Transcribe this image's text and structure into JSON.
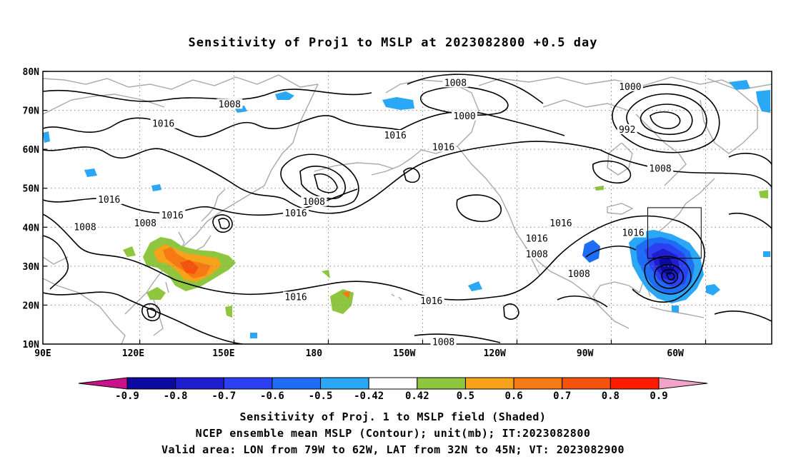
{
  "title": "Sensitivity of Proj1 to MSLP at 2023082800 +0.5 day",
  "map": {
    "lat_labels": [
      "80N",
      "70N",
      "60N",
      "50N",
      "40N",
      "30N",
      "20N",
      "10N"
    ],
    "lon_labels": [
      "90E",
      "120E",
      "150E",
      "180",
      "150W",
      "120W",
      "90W",
      "60W"
    ],
    "contour_labels": [
      {
        "text": "1008",
        "lon": 152,
        "lat": 71.5
      },
      {
        "text": "1016",
        "lon": 130,
        "lat": 66.5
      },
      {
        "text": "1016",
        "lon": 112,
        "lat": 47
      },
      {
        "text": "1008",
        "lon": 104,
        "lat": 40
      },
      {
        "text": "1016",
        "lon": 133,
        "lat": 43
      },
      {
        "text": "1008",
        "lon": 124,
        "lat": 41
      },
      {
        "text": "1016",
        "lon": 174,
        "lat": 43.5
      },
      {
        "text": "1008",
        "lon": 180,
        "lat": 46.5
      },
      {
        "text": "1016",
        "lon": 174,
        "lat": 22
      },
      {
        "text": "1016",
        "lon": -153,
        "lat": 63.5
      },
      {
        "text": "1016",
        "lon": -137,
        "lat": 60.5
      },
      {
        "text": "1008",
        "lon": -133,
        "lat": 77
      },
      {
        "text": "1000",
        "lon": -130,
        "lat": 68.5
      },
      {
        "text": "1016",
        "lon": -141,
        "lat": 21
      },
      {
        "text": "1008",
        "lon": -137,
        "lat": 10.5
      },
      {
        "text": "1016",
        "lon": -106,
        "lat": 37
      },
      {
        "text": "1008",
        "lon": -106,
        "lat": 33
      },
      {
        "text": "1016",
        "lon": -98,
        "lat": 41
      },
      {
        "text": "1000",
        "lon": -75,
        "lat": 76
      },
      {
        "text": "992",
        "lon": -76,
        "lat": 65
      },
      {
        "text": "1008",
        "lon": -65,
        "lat": 55
      },
      {
        "text": "1008",
        "lon": -92,
        "lat": 28
      },
      {
        "text": "1016",
        "lon": -74,
        "lat": 38.5
      }
    ],
    "region_box": {
      "lon_min": -79,
      "lon_max": -62,
      "lat_min": 32,
      "lat_max": 45
    }
  },
  "colorbar": {
    "labels": [
      "-0.9",
      "-0.8",
      "-0.7",
      "-0.6",
      "-0.5",
      "-0.42",
      "0.42",
      "0.5",
      "0.6",
      "0.7",
      "0.8",
      "0.9"
    ],
    "colors": [
      "#0a0aa0",
      "#1e1ecf",
      "#2b40f0",
      "#1e6ef5",
      "#2aa8f5",
      "#ffffff",
      "#8ec63f",
      "#f7a21b",
      "#f57a13",
      "#f5520d",
      "#ff1a00"
    ],
    "end_low": "#c8128c",
    "end_high": "#f4a3c8"
  },
  "captions": {
    "line1": "Sensitivity of Proj. 1 to MSLP field (Shaded)",
    "line2": "NCEP ensemble mean MSLP (Contour); unit(mb); IT:2023082800",
    "line3": "Valid area: LON from 79W to 62W, LAT from 32N to 45N; VT: 2023082900"
  }
}
